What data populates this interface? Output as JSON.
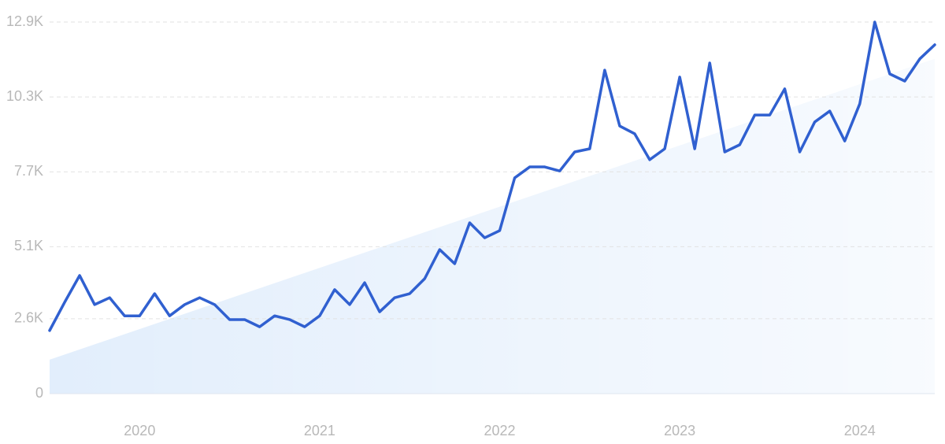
{
  "chart_data": {
    "type": "line",
    "categories": [
      null,
      null,
      null,
      null,
      null,
      null,
      "2020",
      null,
      null,
      null,
      null,
      null,
      null,
      null,
      null,
      null,
      null,
      null,
      "2021",
      null,
      null,
      null,
      null,
      null,
      null,
      null,
      null,
      null,
      null,
      null,
      "2022",
      null,
      null,
      null,
      null,
      null,
      null,
      null,
      null,
      null,
      null,
      null,
      "2023",
      null,
      null,
      null,
      null,
      null,
      null,
      null,
      null,
      null,
      null,
      null,
      "2024",
      null,
      null,
      null,
      null,
      null
    ],
    "series": [
      {
        "color": "#3060d0",
        "values": [
          2190,
          3170,
          4100,
          3090,
          3330,
          2700,
          2700,
          3470,
          2700,
          3090,
          3330,
          3090,
          2570,
          2570,
          2320,
          2700,
          2570,
          2320,
          2700,
          3610,
          3090,
          3850,
          2840,
          3330,
          3470,
          3990,
          5000,
          4510,
          5930,
          5410,
          5660,
          7490,
          7870,
          7870,
          7730,
          8390,
          8500,
          11230,
          9290,
          9020,
          8120,
          8500,
          10990,
          8500,
          11480,
          8390,
          8640,
          9670,
          9670,
          10580,
          8390,
          9430,
          9810,
          8770,
          10060,
          12900,
          11100,
          10850,
          11620,
          12110
        ]
      }
    ],
    "trend": {
      "color": "#e2eefc",
      "values": [
        1180,
        11620
      ]
    },
    "ylim": [
      0,
      12900
    ],
    "yticks": [
      0,
      {
        "value": 2600,
        "label": "2.6K"
      },
      {
        "value": 5100,
        "label": "5.1K"
      },
      {
        "value": 7700,
        "label": "7.7K"
      },
      {
        "value": 10300,
        "label": "10.3K"
      },
      {
        "value": 12900,
        "label": "12.9K"
      }
    ],
    "grid": true
  }
}
